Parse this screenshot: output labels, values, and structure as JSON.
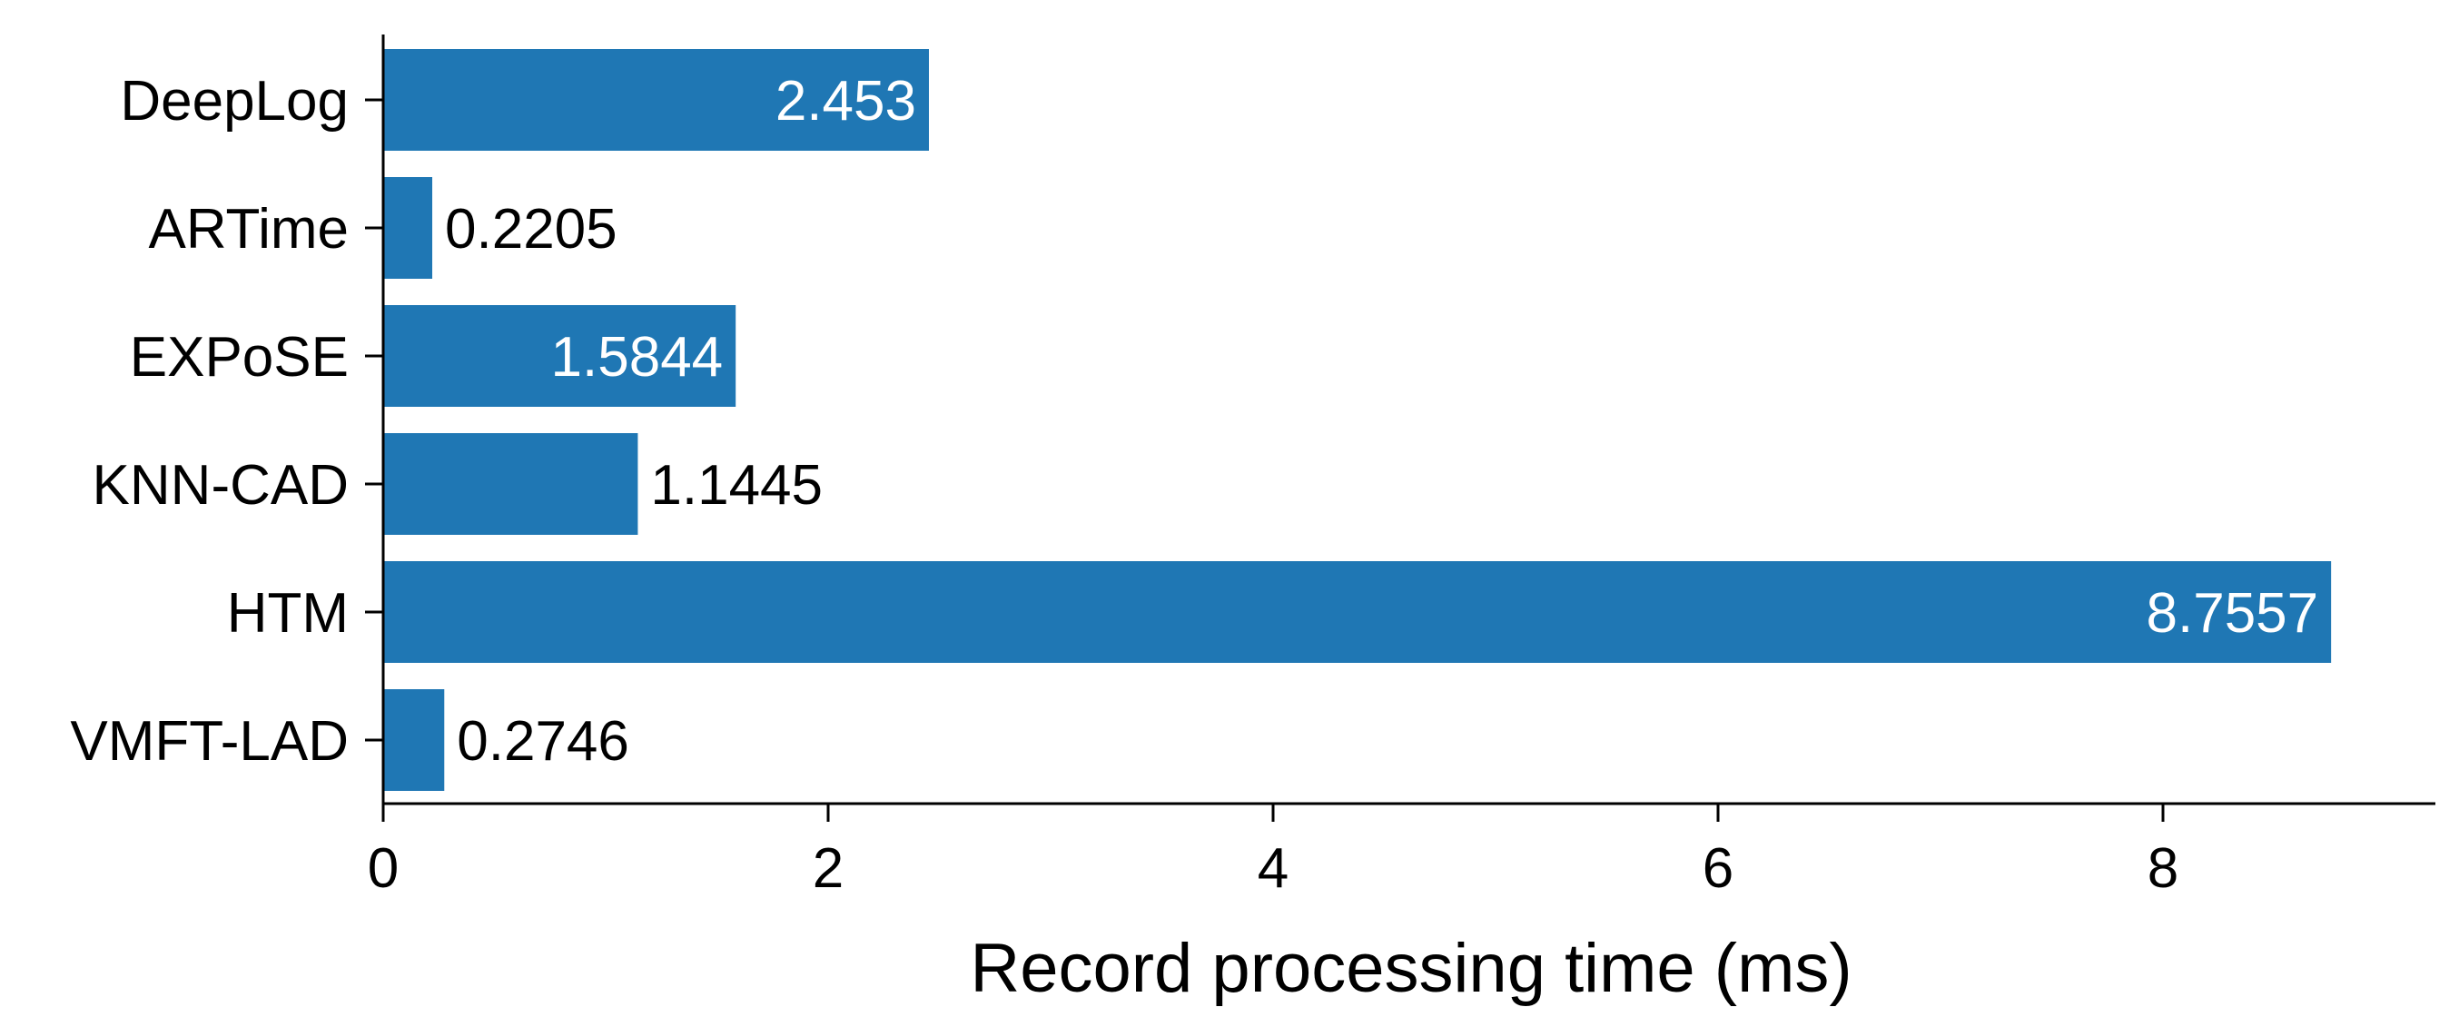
{
  "chart_data": {
    "type": "bar",
    "orientation": "horizontal",
    "categories": [
      "DeepLog",
      "ARTime",
      "EXPoSE",
      "KNN-CAD",
      "HTM",
      "VMFT-LAD"
    ],
    "values": [
      2.453,
      0.2205,
      1.5844,
      1.1445,
      8.7557,
      0.2746
    ],
    "value_labels": [
      "2.453",
      "0.2205",
      "1.5844",
      "1.1445",
      "8.7557",
      "0.2746"
    ],
    "xlabel": "Record processing time (ms)",
    "ylabel": "",
    "title": "",
    "xlim": [
      0,
      9.2
    ],
    "xticks": [
      0,
      2,
      4,
      6,
      8
    ],
    "xtick_labels": [
      "0",
      "2",
      "4",
      "6",
      "8"
    ],
    "grid": false,
    "colors": {
      "bar": "#1f77b4",
      "label_inside": "#ffffff",
      "label_outside": "#000000",
      "axis": "#000000"
    }
  }
}
